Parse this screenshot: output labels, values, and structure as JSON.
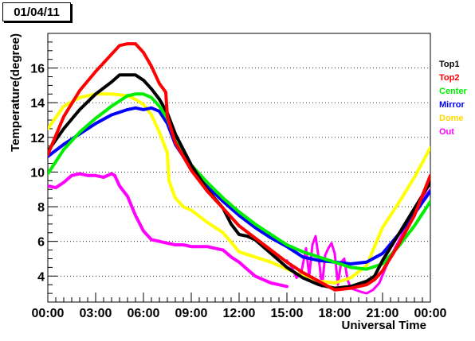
{
  "chart_data": {
    "type": "line",
    "title": "01/04/11",
    "xlabel": "Universal Time",
    "ylabel": "Temperature(degree)",
    "xlim": [
      0,
      24
    ],
    "ylim": [
      2.5,
      18
    ],
    "grid": "horizontal dotted",
    "legend": "right",
    "xticks": [
      "00:00",
      "03:00",
      "06:00",
      "09:00",
      "12:00",
      "15:00",
      "18:00",
      "21:00",
      "00:00"
    ],
    "yticks": [
      4,
      6,
      8,
      10,
      12,
      14,
      16
    ],
    "series": [
      {
        "name": "Top1",
        "color": "#000000",
        "x": [
          0,
          1,
          2,
          3,
          4,
          4.5,
          5,
          5.5,
          6,
          6.5,
          7,
          7.5,
          8,
          9,
          10,
          11,
          11.5,
          12,
          12.5,
          13,
          14,
          15,
          16,
          17,
          18,
          19,
          20,
          20.5,
          21,
          22,
          23,
          24
        ],
        "y": [
          11.2,
          12.5,
          13.6,
          14.5,
          15.2,
          15.6,
          15.6,
          15.6,
          15.3,
          14.8,
          14.2,
          13.4,
          12.2,
          10.4,
          9.0,
          7.9,
          7.0,
          6.4,
          6.3,
          6.1,
          5.3,
          4.5,
          3.9,
          3.5,
          3.3,
          3.4,
          3.7,
          4.0,
          4.9,
          6.4,
          7.9,
          9.4
        ]
      },
      {
        "name": "Top2",
        "color": "#ff0000",
        "x": [
          0,
          1,
          2,
          3,
          4,
          4.5,
          5,
          5.5,
          6,
          6.5,
          7,
          7.4,
          7.5,
          8,
          9,
          10,
          11,
          12,
          13,
          14,
          15,
          16,
          17,
          18,
          19,
          20,
          20.5,
          21,
          22,
          23,
          24
        ],
        "y": [
          11.0,
          13.2,
          14.7,
          15.8,
          16.8,
          17.3,
          17.4,
          17.4,
          16.9,
          16.1,
          15.1,
          14.6,
          13.2,
          11.7,
          10.1,
          8.9,
          7.9,
          6.9,
          6.2,
          5.5,
          4.8,
          4.2,
          3.7,
          3.2,
          3.3,
          3.5,
          3.8,
          4.3,
          5.8,
          7.5,
          9.8
        ]
      },
      {
        "name": "Center",
        "color": "#00ee00",
        "x": [
          0,
          1,
          2,
          3,
          4,
          5,
          5.5,
          6,
          6.5,
          7,
          7.5,
          8,
          9,
          10,
          11,
          12,
          13,
          14,
          15,
          16,
          17,
          18,
          19,
          20,
          21,
          22,
          23,
          24
        ],
        "y": [
          9.9,
          11.3,
          12.3,
          13.1,
          13.8,
          14.4,
          14.5,
          14.5,
          14.3,
          13.8,
          13.1,
          11.8,
          10.4,
          9.4,
          8.5,
          7.7,
          7.0,
          6.4,
          5.8,
          5.4,
          5.1,
          4.8,
          4.5,
          4.4,
          4.7,
          5.7,
          6.9,
          8.3
        ]
      },
      {
        "name": "Mirror",
        "color": "#0000ff",
        "x": [
          0,
          1,
          2,
          3,
          4,
          5,
          5.5,
          6,
          6.5,
          7,
          7.5,
          8,
          9,
          10,
          11,
          12,
          13,
          14,
          15,
          16,
          17,
          18,
          19,
          20,
          21,
          22,
          23,
          24
        ],
        "y": [
          10.9,
          11.6,
          12.2,
          12.8,
          13.3,
          13.6,
          13.7,
          13.6,
          13.7,
          13.5,
          12.8,
          11.6,
          10.2,
          9.2,
          8.3,
          7.5,
          6.8,
          6.2,
          5.7,
          5.1,
          4.9,
          4.8,
          4.7,
          4.8,
          5.3,
          6.4,
          7.6,
          8.9
        ]
      },
      {
        "name": "Dome",
        "color": "#ffff00",
        "x": [
          0,
          1,
          2,
          3,
          4,
          5,
          5.5,
          6,
          6.5,
          7,
          7.5,
          7.6,
          8,
          8.5,
          9,
          10,
          11,
          12,
          13,
          14,
          15,
          16,
          17,
          18,
          19,
          20,
          20.5,
          21,
          22,
          23,
          24
        ],
        "y": [
          12.5,
          13.8,
          14.3,
          14.5,
          14.5,
          14.4,
          14.2,
          13.9,
          13.3,
          12.3,
          11.1,
          9.5,
          8.5,
          8.0,
          7.8,
          7.1,
          6.5,
          5.4,
          5.1,
          4.8,
          4.4,
          4.0,
          3.7,
          3.6,
          3.9,
          4.6,
          5.7,
          6.8,
          8.2,
          9.7,
          11.4
        ]
      },
      {
        "name": "Out",
        "color": "#ff00ff",
        "x": [
          0,
          0.5,
          1,
          1.5,
          2,
          2.5,
          3,
          3.5,
          4,
          4.2,
          4.5,
          5,
          5.5,
          6,
          6.5,
          7,
          7.5,
          8,
          8.5,
          9,
          9.5,
          10,
          10.5,
          11,
          11.5,
          12,
          12.5,
          13,
          13.5,
          14,
          14.5,
          15
        ],
        "y": [
          9.2,
          9.1,
          9.4,
          9.8,
          9.9,
          9.8,
          9.8,
          9.7,
          9.9,
          9.8,
          9.2,
          8.6,
          7.5,
          6.6,
          6.1,
          6.0,
          5.9,
          5.8,
          5.8,
          5.7,
          5.7,
          5.7,
          5.6,
          5.5,
          5.1,
          4.8,
          4.4,
          4.0,
          3.8,
          3.6,
          3.5,
          3.4
        ]
      }
    ],
    "out_extra": {
      "x": [
        15,
        15.3,
        15.6,
        15.9,
        16.2,
        16.4,
        16.6,
        16.8,
        17.0,
        17.2,
        17.4,
        17.6,
        17.8,
        18.0,
        18.2,
        18.4,
        18.6,
        18.8,
        19.0,
        19.3,
        19.6,
        20.0,
        20.4,
        20.8,
        21.2,
        21.6,
        22,
        22.5,
        23,
        23.5,
        24
      ],
      "y": [
        4.9,
        4.5,
        3.9,
        4.2,
        5.6,
        4.0,
        5.8,
        6.3,
        5.0,
        3.4,
        5.2,
        5.6,
        5.9,
        5.3,
        3.5,
        4.8,
        5.0,
        3.8,
        3.3,
        3.2,
        3.1,
        3.0,
        3.2,
        3.6,
        4.5,
        5.3,
        6.0,
        6.9,
        7.6,
        8.4,
        9.0
      ]
    }
  }
}
